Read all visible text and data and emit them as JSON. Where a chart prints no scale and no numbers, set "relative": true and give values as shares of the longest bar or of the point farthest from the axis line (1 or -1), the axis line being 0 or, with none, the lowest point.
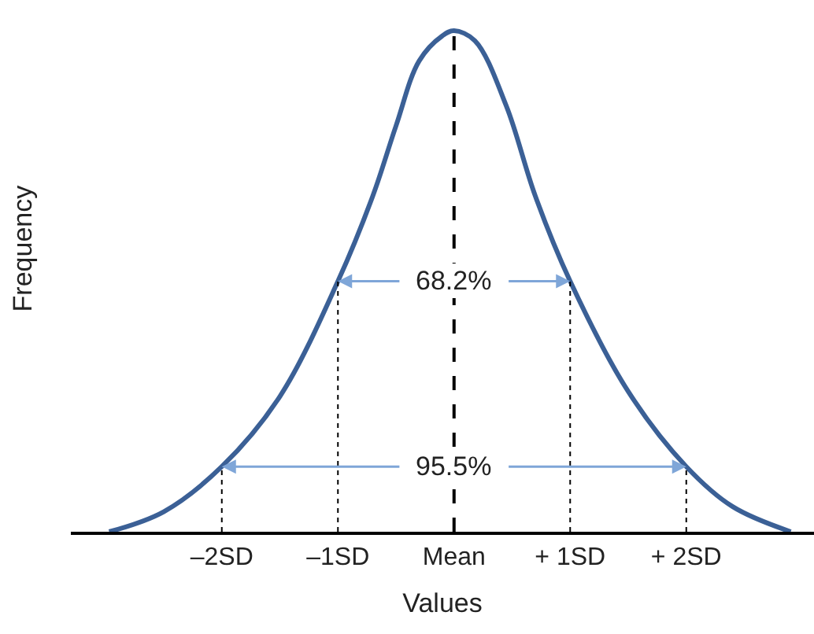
{
  "chart_data": {
    "type": "line",
    "relative": true,
    "xlabel": "Values",
    "ylabel": "Frequency",
    "x": [
      -2.97,
      -2.5,
      -2,
      -1.5,
      -1,
      -0.7,
      -0.5,
      -0.3,
      -0.1,
      0,
      0.18,
      0.45,
      0.7,
      1,
      1.5,
      2,
      2.4,
      2.9
    ],
    "series": [
      {
        "color": "#3b6096",
        "values": [
          0,
          0.04,
          0.13,
          0.27,
          0.5,
          0.67,
          0.81,
          0.94,
          0.99,
          1,
          0.98,
          0.85,
          0.67,
          0.5,
          0.28,
          0.13,
          0.05,
          0
        ]
      }
    ],
    "xlim": [
      -3.3,
      3.1
    ],
    "xticks": [
      {
        "value": -2,
        "label": "–2SD"
      },
      {
        "value": -1,
        "label": "–1SD"
      },
      {
        "value": 0,
        "label": "Mean"
      },
      {
        "value": 1,
        "label": "+ 1SD"
      },
      {
        "value": 2,
        "label": "+ 2SD"
      }
    ],
    "ref_lines": [
      {
        "axis": "x",
        "value": -2,
        "line_style": "dotted",
        "color": "#000000"
      },
      {
        "axis": "x",
        "value": -1,
        "line_style": "dotted",
        "color": "#000000"
      },
      {
        "axis": "x",
        "value": 0,
        "line_style": "dashed",
        "color": "#000000"
      },
      {
        "axis": "x",
        "value": 1,
        "line_style": "dotted",
        "color": "#000000"
      },
      {
        "axis": "x",
        "value": 2,
        "line_style": "dotted",
        "color": "#000000"
      }
    ],
    "annotations": [
      {
        "text": "68.2%",
        "x": 0,
        "y": 0.5
      },
      {
        "text": "95.5%",
        "x": 0,
        "y": 0.13
      }
    ],
    "marker": "none",
    "line_style": "solid"
  }
}
